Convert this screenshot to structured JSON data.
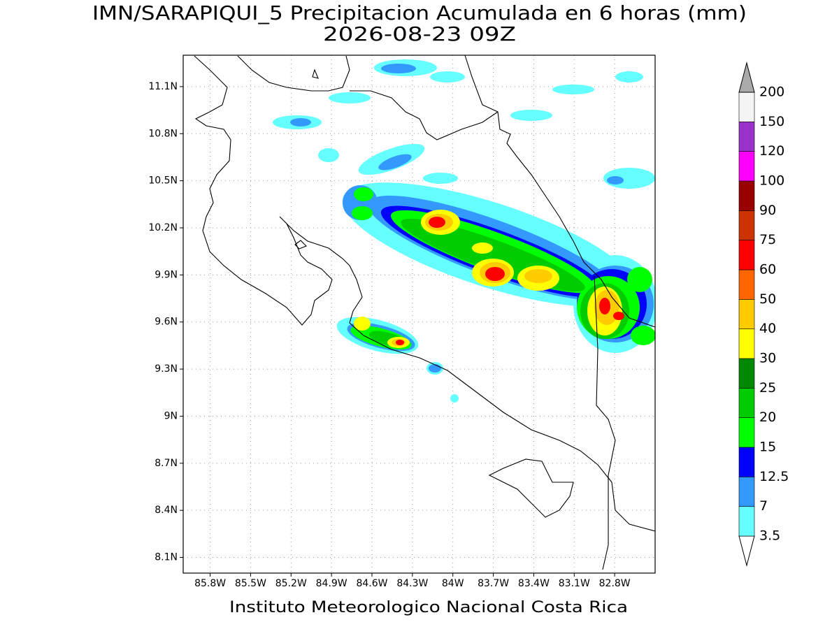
{
  "title": "IMN/SARAPIQUI_5 Precipitacion Acumulada en 6 horas (mm)",
  "subtitle": "2026-08-23 09Z",
  "footer": "Instituto Meteorologico Nacional Costa Rica",
  "map": {
    "lon_range": [
      -86.0,
      -82.5
    ],
    "lat_range": [
      8.0,
      11.3
    ],
    "grid": true,
    "lon_ticks": [
      {
        "value": -85.8,
        "label": "85.8W"
      },
      {
        "value": -85.5,
        "label": "85.5W"
      },
      {
        "value": -85.2,
        "label": "85.2W"
      },
      {
        "value": -84.9,
        "label": "84.9W"
      },
      {
        "value": -84.6,
        "label": "84.6W"
      },
      {
        "value": -84.3,
        "label": "84.3W"
      },
      {
        "value": -84.0,
        "label": "84W"
      },
      {
        "value": -83.7,
        "label": "83.7W"
      },
      {
        "value": -83.4,
        "label": "83.4W"
      },
      {
        "value": -83.1,
        "label": "83.1W"
      },
      {
        "value": -82.8,
        "label": "82.8W"
      }
    ],
    "lat_ticks": [
      {
        "value": 11.1,
        "label": "11.1N"
      },
      {
        "value": 10.8,
        "label": "10.8N"
      },
      {
        "value": 10.5,
        "label": "10.5N"
      },
      {
        "value": 10.2,
        "label": "10.2N"
      },
      {
        "value": 9.9,
        "label": "9.9N"
      },
      {
        "value": 9.6,
        "label": "9.6N"
      },
      {
        "value": 9.3,
        "label": "9.3N"
      },
      {
        "value": 9.0,
        "label": "9N"
      },
      {
        "value": 8.7,
        "label": "8.7N"
      },
      {
        "value": 8.4,
        "label": "8.4N"
      },
      {
        "value": 8.1,
        "label": "8.1N"
      }
    ]
  },
  "colorbar": {
    "levels": [
      3.5,
      7,
      12.5,
      15,
      20,
      25,
      30,
      40,
      50,
      60,
      75,
      90,
      100,
      120,
      150,
      200
    ],
    "colors": [
      "#ffffff",
      "#66ffff",
      "#3399ff",
      "#0000ff",
      "#00ff00",
      "#00cc00",
      "#008800",
      "#ffff00",
      "#ffcc00",
      "#ff6600",
      "#ff0000",
      "#cc3300",
      "#990000",
      "#ff00ff",
      "#9933cc",
      "#f4f4f4",
      "#aaaaaa"
    ]
  }
}
